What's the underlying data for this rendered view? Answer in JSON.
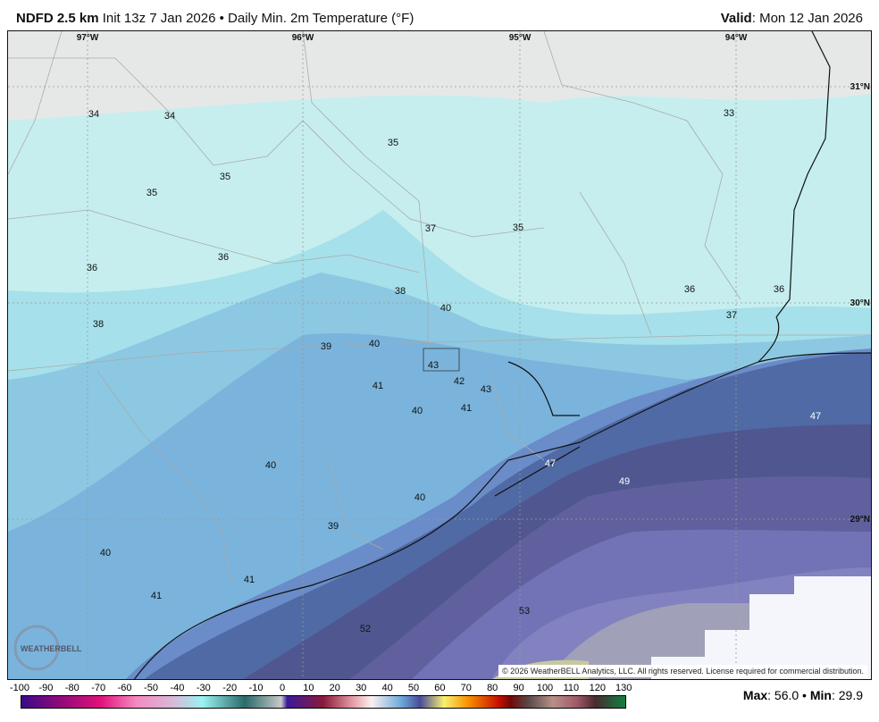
{
  "header": {
    "model": "NDFD 2.5 km",
    "desc": "Init 13z 7 Jan 2026 • Daily Min. 2m Temperature (°F)",
    "valid_label": "Valid",
    "valid_value": ": Mon 12 Jan 2026"
  },
  "map": {
    "lon_labels": [
      "97°W",
      "96°W",
      "95°W",
      "94°W"
    ],
    "lat_labels": [
      "31°N",
      "30°N",
      "29°N"
    ],
    "temperatures": [
      "34",
      "34",
      "35",
      "33",
      "35",
      "35",
      "37",
      "35",
      "36",
      "36",
      "38",
      "40",
      "36",
      "36",
      "37",
      "38",
      "39",
      "40",
      "43",
      "42",
      "43",
      "41",
      "40",
      "41",
      "47",
      "47",
      "49",
      "40",
      "40",
      "39",
      "40",
      "41",
      "41",
      "53",
      "52"
    ],
    "logo_text": "WeatherBELL",
    "copyright": "© 2026 WeatherBELL Analytics, LLC. All rights reserved. License required for commercial distribution."
  },
  "colorbar": {
    "ticks": [
      "-100",
      "-90",
      "-80",
      "-70",
      "-60",
      "-50",
      "-40",
      "-30",
      "-20",
      "-10",
      "0",
      "10",
      "20",
      "30",
      "40",
      "50",
      "60",
      "70",
      "80",
      "90",
      "100",
      "110",
      "120",
      "130"
    ]
  },
  "stats": {
    "max_label": "Max",
    "max_value": ": 56.0",
    "sep": " • ",
    "min_label": "Min",
    "min_value": ": 29.9"
  }
}
